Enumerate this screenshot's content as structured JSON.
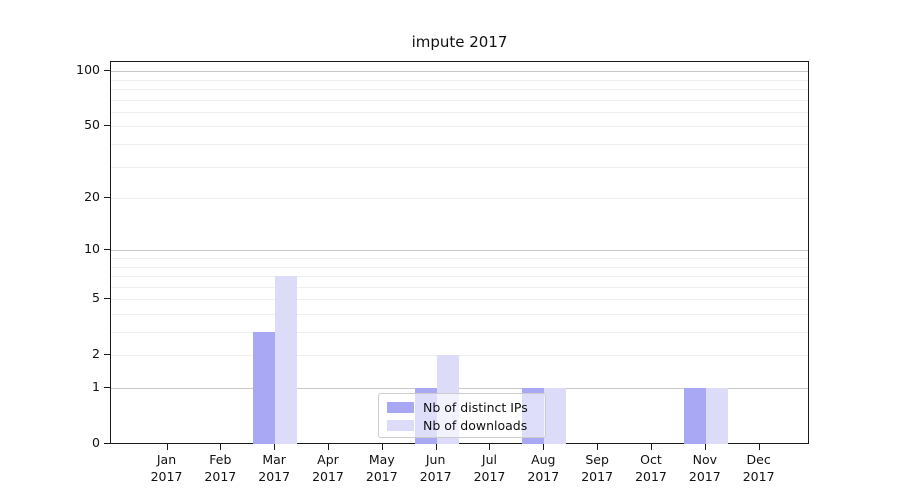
{
  "chart_data": {
    "type": "bar",
    "title": "impute 2017",
    "categories": [
      "Jan 2017",
      "Feb 2017",
      "Mar 2017",
      "Apr 2017",
      "May 2017",
      "Jun 2017",
      "Jul 2017",
      "Aug 2017",
      "Sep 2017",
      "Oct 2017",
      "Nov 2017",
      "Dec 2017"
    ],
    "series": [
      {
        "name": "Nb of distinct IPs",
        "color": "#a8a8f4",
        "values": [
          0,
          0,
          3,
          0,
          0,
          1,
          0,
          1,
          0,
          0,
          1,
          0
        ]
      },
      {
        "name": "Nb of downloads",
        "color": "#dcdcf9",
        "values": [
          0,
          0,
          7,
          0,
          0,
          2,
          0,
          1,
          0,
          0,
          1,
          0
        ]
      }
    ],
    "y_scale": "log1p",
    "ylim": [
      0,
      114
    ],
    "y_tick_labels": [
      0,
      1,
      2,
      5,
      10,
      20,
      50,
      100
    ],
    "grid_major_values": [
      1,
      10,
      100
    ],
    "grid_minor_values": [
      2,
      3,
      4,
      5,
      6,
      7,
      8,
      9,
      20,
      30,
      40,
      50,
      60,
      70,
      80,
      90
    ],
    "grid": "on",
    "legend_position": "lower center"
  },
  "colors": {
    "grid_major": "#c8c8c8",
    "grid_minor": "#efefef",
    "axis": "#1a1a1a"
  }
}
